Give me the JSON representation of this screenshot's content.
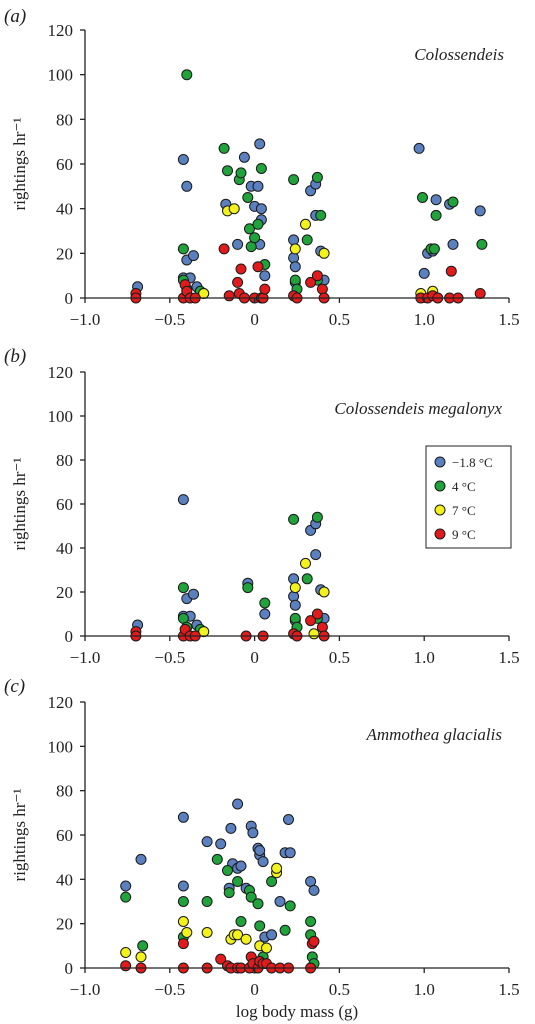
{
  "colors": {
    "-1.8 °C": "#5b80bf",
    "4 °C": "#1fa33a",
    "7 °C": "#f3f21a",
    "9 °C": "#e11b1b"
  },
  "chart_data": [
    {
      "type": "scatter",
      "panel": "(a)",
      "title": "Colossendeis",
      "xlabel": "",
      "ylabel": "rightings hr⁻¹",
      "xlim": [
        -1.0,
        1.5
      ],
      "ylim": [
        0,
        120
      ],
      "xticks": [
        "−1.0",
        "−0.5",
        "0",
        "0.5",
        "1.0",
        "1.5"
      ],
      "yticks": [
        "0",
        "20",
        "40",
        "60",
        "80",
        "100",
        "120"
      ],
      "legend": null,
      "series": [
        {
          "name": "−1.8 °C",
          "points": [
            [
              -0.69,
              5
            ],
            [
              -0.42,
              62
            ],
            [
              -0.4,
              50
            ],
            [
              -0.42,
              9
            ],
            [
              -0.38,
              9
            ],
            [
              -0.4,
              17
            ],
            [
              -0.36,
              19
            ],
            [
              -0.34,
              5
            ],
            [
              -0.06,
              63
            ],
            [
              -0.17,
              42
            ],
            [
              -0.1,
              24
            ],
            [
              -0.02,
              50
            ],
            [
              0.0,
              41
            ],
            [
              0.03,
              69
            ],
            [
              0.02,
              50
            ],
            [
              0.04,
              40
            ],
            [
              0.04,
              35
            ],
            [
              0.03,
              24
            ],
            [
              0.06,
              10
            ],
            [
              0.23,
              26
            ],
            [
              0.23,
              18
            ],
            [
              0.24,
              14
            ],
            [
              0.24,
              7
            ],
            [
              0.33,
              48
            ],
            [
              0.36,
              51
            ],
            [
              0.36,
              37
            ],
            [
              0.39,
              21
            ],
            [
              0.41,
              8
            ],
            [
              0.97,
              67
            ],
            [
              1.0,
              11
            ],
            [
              1.02,
              20
            ],
            [
              1.07,
              44
            ],
            [
              1.05,
              21
            ],
            [
              1.15,
              42
            ],
            [
              1.17,
              24
            ],
            [
              1.33,
              39
            ]
          ]
        },
        {
          "name": "4 °C",
          "points": [
            [
              -0.4,
              100
            ],
            [
              -0.42,
              22
            ],
            [
              -0.42,
              8
            ],
            [
              -0.4,
              4
            ],
            [
              -0.32,
              3
            ],
            [
              -0.3,
              2
            ],
            [
              -0.18,
              67
            ],
            [
              -0.16,
              57
            ],
            [
              -0.09,
              53
            ],
            [
              -0.08,
              56
            ],
            [
              -0.04,
              45
            ],
            [
              -0.03,
              31
            ],
            [
              -0.02,
              23
            ],
            [
              0.0,
              27
            ],
            [
              0.02,
              33
            ],
            [
              0.04,
              58
            ],
            [
              0.06,
              15
            ],
            [
              0.23,
              53
            ],
            [
              0.24,
              8
            ],
            [
              0.25,
              4
            ],
            [
              0.31,
              26
            ],
            [
              0.37,
              54
            ],
            [
              0.39,
              37
            ],
            [
              0.37,
              8
            ],
            [
              0.99,
              45
            ],
            [
              1.04,
              22
            ],
            [
              1.06,
              22
            ],
            [
              1.07,
              37
            ],
            [
              1.17,
              43
            ],
            [
              1.34,
              24
            ]
          ]
        },
        {
          "name": "7 °C",
          "points": [
            [
              -0.3,
              2
            ],
            [
              -0.16,
              39
            ],
            [
              -0.12,
              40
            ],
            [
              0.24,
              22
            ],
            [
              0.3,
              33
            ],
            [
              0.41,
              20
            ],
            [
              0.98,
              2
            ],
            [
              1.05,
              3
            ]
          ]
        },
        {
          "name": "9 °C",
          "points": [
            [
              -0.7,
              2
            ],
            [
              -0.7,
              0
            ],
            [
              -0.42,
              0
            ],
            [
              -0.41,
              6
            ],
            [
              -0.4,
              3
            ],
            [
              -0.38,
              0
            ],
            [
              -0.35,
              0
            ],
            [
              -0.18,
              22
            ],
            [
              -0.15,
              1
            ],
            [
              -0.1,
              7
            ],
            [
              -0.09,
              2
            ],
            [
              -0.08,
              13
            ],
            [
              -0.06,
              0
            ],
            [
              0.0,
              0
            ],
            [
              0.02,
              14
            ],
            [
              0.04,
              0
            ],
            [
              0.05,
              0
            ],
            [
              0.06,
              4
            ],
            [
              0.23,
              1
            ],
            [
              0.25,
              0
            ],
            [
              0.33,
              7
            ],
            [
              0.37,
              10
            ],
            [
              0.4,
              4
            ],
            [
              0.41,
              0
            ],
            [
              0.98,
              0
            ],
            [
              1.02,
              0
            ],
            [
              1.05,
              1
            ],
            [
              1.08,
              0
            ],
            [
              1.15,
              0
            ],
            [
              1.16,
              12
            ],
            [
              1.2,
              0
            ],
            [
              1.33,
              2
            ]
          ]
        }
      ]
    },
    {
      "type": "scatter",
      "panel": "(b)",
      "title": "Colossendeis megalonyx",
      "xlabel": "",
      "ylabel": "rightings hr⁻¹",
      "xlim": [
        -1.0,
        1.5
      ],
      "ylim": [
        0,
        120
      ],
      "xticks": [
        "−1.0",
        "−0.5",
        "0",
        "0.5",
        "1.0",
        "1.5"
      ],
      "yticks": [
        "0",
        "20",
        "40",
        "60",
        "80",
        "100",
        "120"
      ],
      "legend": {
        "placement": "right",
        "entries": [
          "−1.8 °C",
          "4 °C",
          "7 °C",
          "9 °C"
        ]
      },
      "series": [
        {
          "name": "−1.8 °C",
          "points": [
            [
              -0.69,
              5
            ],
            [
              -0.42,
              62
            ],
            [
              -0.42,
              9
            ],
            [
              -0.38,
              9
            ],
            [
              -0.4,
              17
            ],
            [
              -0.36,
              19
            ],
            [
              -0.34,
              5
            ],
            [
              -0.04,
              24
            ],
            [
              0.06,
              10
            ],
            [
              0.23,
              26
            ],
            [
              0.23,
              18
            ],
            [
              0.24,
              14
            ],
            [
              0.24,
              7
            ],
            [
              0.33,
              48
            ],
            [
              0.36,
              51
            ],
            [
              0.36,
              37
            ],
            [
              0.39,
              21
            ],
            [
              0.41,
              8
            ]
          ]
        },
        {
          "name": "4 °C",
          "points": [
            [
              -0.42,
              22
            ],
            [
              -0.42,
              8
            ],
            [
              -0.4,
              4
            ],
            [
              -0.32,
              3
            ],
            [
              -0.3,
              2
            ],
            [
              -0.04,
              22
            ],
            [
              0.06,
              15
            ],
            [
              0.23,
              53
            ],
            [
              0.24,
              8
            ],
            [
              0.25,
              4
            ],
            [
              0.31,
              26
            ],
            [
              0.37,
              54
            ],
            [
              0.37,
              8
            ]
          ]
        },
        {
          "name": "7 °C",
          "points": [
            [
              -0.3,
              2
            ],
            [
              0.24,
              22
            ],
            [
              0.3,
              33
            ],
            [
              0.35,
              1
            ],
            [
              0.41,
              20
            ]
          ]
        },
        {
          "name": "9 °C",
          "points": [
            [
              -0.7,
              2
            ],
            [
              -0.7,
              0
            ],
            [
              -0.42,
              0
            ],
            [
              -0.41,
              3
            ],
            [
              -0.38,
              0
            ],
            [
              -0.35,
              0
            ],
            [
              -0.05,
              0
            ],
            [
              0.05,
              0
            ],
            [
              0.23,
              1
            ],
            [
              0.25,
              0
            ],
            [
              0.33,
              7
            ],
            [
              0.37,
              10
            ],
            [
              0.4,
              4
            ],
            [
              0.41,
              0
            ]
          ]
        }
      ]
    },
    {
      "type": "scatter",
      "panel": "(c)",
      "title": "Ammothea glacialis",
      "xlabel": "log body mass (g)",
      "ylabel": "rightings hr⁻¹",
      "xlim": [
        -1.0,
        1.5
      ],
      "ylim": [
        0,
        120
      ],
      "xticks": [
        "−1.0",
        "−0.5",
        "0",
        "0.5",
        "1.0",
        "1.5"
      ],
      "yticks": [
        "0",
        "20",
        "40",
        "60",
        "80",
        "100",
        "120"
      ],
      "legend": null,
      "series": [
        {
          "name": "−1.8 °C",
          "points": [
            [
              -0.76,
              37
            ],
            [
              -0.67,
              49
            ],
            [
              -0.42,
              68
            ],
            [
              -0.42,
              37
            ],
            [
              -0.28,
              57
            ],
            [
              -0.2,
              56
            ],
            [
              -0.15,
              36
            ],
            [
              -0.14,
              63
            ],
            [
              -0.13,
              47
            ],
            [
              -0.1,
              45
            ],
            [
              -0.1,
              74
            ],
            [
              -0.08,
              46
            ],
            [
              -0.05,
              36
            ],
            [
              -0.02,
              64
            ],
            [
              -0.01,
              61
            ],
            [
              0.02,
              54
            ],
            [
              0.03,
              51
            ],
            [
              0.06,
              14
            ],
            [
              0.05,
              48
            ],
            [
              0.03,
              53
            ],
            [
              0.1,
              15
            ],
            [
              0.15,
              30
            ],
            [
              0.18,
              52
            ],
            [
              0.2,
              67
            ],
            [
              0.21,
              52
            ],
            [
              0.33,
              39
            ],
            [
              0.35,
              35
            ]
          ]
        },
        {
          "name": "4 °C",
          "points": [
            [
              -0.76,
              32
            ],
            [
              -0.66,
              10
            ],
            [
              -0.42,
              30
            ],
            [
              -0.42,
              14
            ],
            [
              -0.28,
              30
            ],
            [
              -0.22,
              49
            ],
            [
              -0.16,
              44
            ],
            [
              -0.15,
              34
            ],
            [
              -0.1,
              39
            ],
            [
              -0.08,
              21
            ],
            [
              -0.03,
              35
            ],
            [
              -0.02,
              32
            ],
            [
              0.02,
              29
            ],
            [
              0.03,
              19
            ],
            [
              0.05,
              5
            ],
            [
              0.1,
              39
            ],
            [
              0.18,
              17
            ],
            [
              0.21,
              28
            ],
            [
              0.33,
              21
            ],
            [
              0.33,
              15
            ],
            [
              0.34,
              5
            ],
            [
              0.35,
              2
            ]
          ]
        },
        {
          "name": "7 °C",
          "points": [
            [
              -0.76,
              7
            ],
            [
              -0.67,
              5
            ],
            [
              -0.42,
              21
            ],
            [
              -0.4,
              16
            ],
            [
              -0.28,
              16
            ],
            [
              -0.14,
              13
            ],
            [
              -0.12,
              15
            ],
            [
              -0.1,
              15
            ],
            [
              -0.05,
              13
            ],
            [
              0.0,
              0
            ],
            [
              0.03,
              10
            ],
            [
              0.07,
              9
            ],
            [
              0.13,
              43
            ],
            [
              0.13,
              45
            ]
          ]
        },
        {
          "name": "9 °C",
          "points": [
            [
              -0.76,
              1
            ],
            [
              -0.67,
              0
            ],
            [
              -0.42,
              0
            ],
            [
              -0.42,
              11
            ],
            [
              -0.28,
              0
            ],
            [
              -0.2,
              4
            ],
            [
              -0.16,
              1
            ],
            [
              -0.14,
              0
            ],
            [
              -0.1,
              0
            ],
            [
              -0.08,
              0
            ],
            [
              -0.03,
              0
            ],
            [
              -0.02,
              5
            ],
            [
              -0.01,
              2
            ],
            [
              0.02,
              0
            ],
            [
              0.03,
              3
            ],
            [
              0.05,
              2
            ],
            [
              0.07,
              2
            ],
            [
              0.1,
              0
            ],
            [
              0.15,
              0
            ],
            [
              0.2,
              0
            ],
            [
              0.33,
              0
            ],
            [
              0.34,
              11
            ],
            [
              0.35,
              12
            ]
          ]
        }
      ]
    }
  ]
}
